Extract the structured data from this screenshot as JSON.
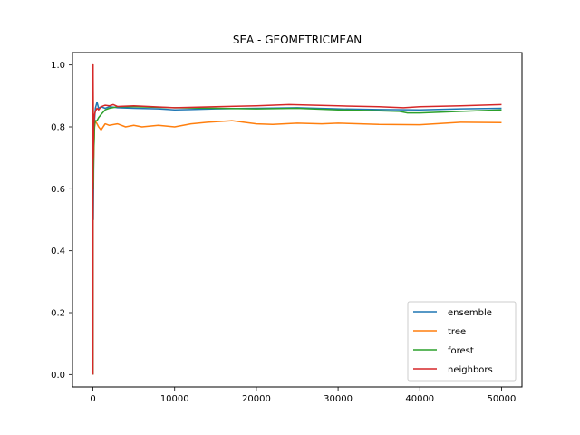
{
  "chart_data": {
    "type": "line",
    "title": "SEA - GEOMETRICMEAN",
    "xlabel": "",
    "ylabel": "",
    "xlim": [
      -2500,
      52500
    ],
    "ylim": [
      -0.04,
      1.04
    ],
    "xticks": [
      0,
      10000,
      20000,
      30000,
      40000,
      50000
    ],
    "xtick_labels": [
      "0",
      "10000",
      "20000",
      "30000",
      "40000",
      "50000"
    ],
    "yticks": [
      0.0,
      0.2,
      0.4,
      0.6,
      0.8,
      1.0
    ],
    "ytick_labels": [
      "0.0",
      "0.2",
      "0.4",
      "0.6",
      "0.8",
      "1.0"
    ],
    "grid": false,
    "legend_position": "lower-right",
    "series": [
      {
        "name": "ensemble",
        "color": "#1f77b4",
        "x": [
          0,
          20,
          50,
          100,
          200,
          300,
          400,
          500,
          700,
          1000,
          1500,
          2000,
          3000,
          5000,
          8000,
          10000,
          12000,
          15000,
          20000,
          25000,
          30000,
          35000,
          40000,
          45000,
          50000
        ],
        "y": [
          0.0,
          1.0,
          0.5,
          0.7,
          0.82,
          0.86,
          0.87,
          0.88,
          0.86,
          0.865,
          0.86,
          0.865,
          0.862,
          0.86,
          0.858,
          0.855,
          0.856,
          0.858,
          0.86,
          0.862,
          0.858,
          0.856,
          0.855,
          0.858,
          0.86
        ]
      },
      {
        "name": "tree",
        "color": "#ff7f0e",
        "x": [
          0,
          20,
          50,
          100,
          200,
          300,
          500,
          700,
          1000,
          1500,
          2000,
          3000,
          4000,
          5000,
          6000,
          8000,
          10000,
          12000,
          14000,
          17000,
          20000,
          22000,
          25000,
          28000,
          30000,
          35000,
          40000,
          45000,
          50000
        ],
        "y": [
          0.0,
          1.0,
          0.62,
          0.7,
          0.8,
          0.82,
          0.81,
          0.8,
          0.79,
          0.81,
          0.805,
          0.81,
          0.8,
          0.805,
          0.8,
          0.805,
          0.8,
          0.81,
          0.815,
          0.82,
          0.81,
          0.808,
          0.812,
          0.81,
          0.812,
          0.808,
          0.807,
          0.815,
          0.814
        ]
      },
      {
        "name": "forest",
        "color": "#2ca02c",
        "x": [
          0,
          20,
          50,
          100,
          200,
          300,
          500,
          700,
          1000,
          1500,
          2000,
          3000,
          5000,
          10000,
          15000,
          20000,
          25000,
          30000,
          35000,
          37500,
          38500,
          40000,
          45000,
          50000
        ],
        "y": [
          0.0,
          0.95,
          0.6,
          0.72,
          0.8,
          0.82,
          0.82,
          0.83,
          0.84,
          0.855,
          0.86,
          0.865,
          0.865,
          0.862,
          0.86,
          0.858,
          0.86,
          0.855,
          0.852,
          0.85,
          0.845,
          0.845,
          0.85,
          0.855
        ]
      },
      {
        "name": "neighbors",
        "color": "#d62728",
        "x": [
          0,
          20,
          50,
          100,
          200,
          300,
          500,
          700,
          1000,
          1500,
          2000,
          2500,
          3000,
          5000,
          10000,
          15000,
          20000,
          24000,
          30000,
          35000,
          38000,
          40000,
          45000,
          50000
        ],
        "y": [
          0.0,
          1.0,
          0.7,
          0.8,
          0.84,
          0.85,
          0.86,
          0.855,
          0.865,
          0.87,
          0.868,
          0.872,
          0.866,
          0.868,
          0.862,
          0.865,
          0.868,
          0.872,
          0.868,
          0.865,
          0.862,
          0.865,
          0.868,
          0.872
        ]
      }
    ]
  }
}
